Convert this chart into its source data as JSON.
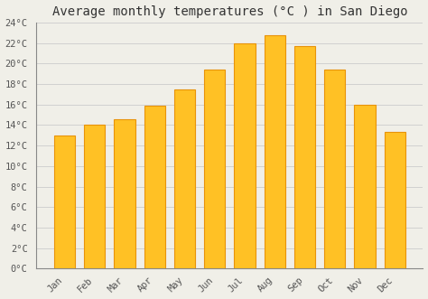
{
  "title": "Average monthly temperatures (°C ) in San Diego",
  "months": [
    "Jan",
    "Feb",
    "Mar",
    "Apr",
    "May",
    "Jun",
    "Jul",
    "Aug",
    "Sep",
    "Oct",
    "Nov",
    "Dec"
  ],
  "values": [
    13.0,
    14.0,
    14.6,
    15.9,
    17.5,
    19.4,
    22.0,
    22.8,
    21.7,
    19.4,
    16.0,
    13.3
  ],
  "bar_color": "#FFC125",
  "bar_edge_color": "#E8930A",
  "background_color": "#F0EFE8",
  "plot_bg_color": "#F0EFE8",
  "grid_color": "#CCCCCC",
  "ylim": [
    0,
    24
  ],
  "yticks": [
    0,
    2,
    4,
    6,
    8,
    10,
    12,
    14,
    16,
    18,
    20,
    22,
    24
  ],
  "ytick_labels": [
    "0°C",
    "2°C",
    "4°C",
    "6°C",
    "8°C",
    "10°C",
    "12°C",
    "14°C",
    "16°C",
    "18°C",
    "20°C",
    "22°C",
    "24°C"
  ],
  "title_fontsize": 10,
  "tick_fontsize": 7.5,
  "font_family": "monospace",
  "figsize": [
    4.74,
    3.31
  ],
  "dpi": 100
}
